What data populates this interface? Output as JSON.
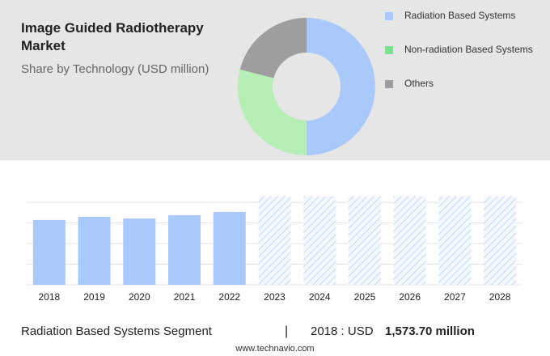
{
  "chart_data": [
    {
      "type": "donut",
      "title": "Image Guided Radiotherapy Market",
      "subtitle": "Share by Technology (USD million)",
      "categories": [
        "Radiation Based Systems",
        "Non-radiation Based Systems",
        "Others"
      ],
      "values": [
        50,
        29,
        21
      ],
      "colors": [
        "#a9c9fb",
        "#b6efb6",
        "#9e9e9e"
      ],
      "legend_colors": [
        "#a9c9fb",
        "#7ee08e",
        "#9e9e9e"
      ]
    },
    {
      "type": "bar",
      "categories": [
        "2018",
        "2019",
        "2020",
        "2021",
        "2022",
        "2023",
        "2024",
        "2025",
        "2026",
        "2027",
        "2028"
      ],
      "values": [
        1573.7,
        1650,
        1610,
        1690,
        1770,
        2150,
        2150,
        2150,
        2150,
        2150,
        2150
      ],
      "hatched": [
        false,
        false,
        false,
        false,
        false,
        true,
        true,
        true,
        true,
        true,
        true
      ],
      "color": "#a9c9fb",
      "ylim": [
        0,
        2200
      ],
      "yticks": [
        0,
        500,
        1000,
        1500,
        2000
      ],
      "grid": true,
      "footer": {
        "segment": "Radiation Based Systems Segment",
        "separator": "|",
        "year": "2018 : USD",
        "value_label": "1,573.70 million",
        "source": "www.technavio.com"
      }
    }
  ]
}
